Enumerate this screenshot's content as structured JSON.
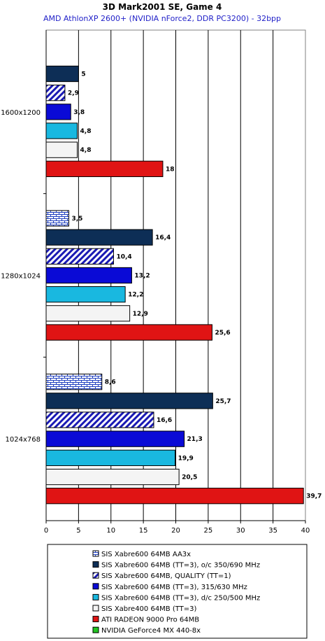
{
  "chart_data": {
    "type": "bar",
    "orientation": "horizontal",
    "title": "3D Mark2001 SE, Game 4",
    "subtitle": "AMD AthlonXP 2600+ (NVIDIA nForce2, DDR PC3200) - 32bpp",
    "categories": [
      "1600x1200",
      "1280x1024",
      "1024x768"
    ],
    "xlim": [
      0,
      40
    ],
    "xticks": [
      0,
      5,
      10,
      15,
      20,
      25,
      30,
      35,
      40
    ],
    "grid": "vertical",
    "legend_position": "bottom",
    "series": [
      {
        "name": "SIS Xabre600 64MB AA3x",
        "values": [
          null,
          3.5,
          8.6
        ],
        "labels": [
          "",
          "3,5",
          "8,6"
        ],
        "fill": "#ffffff",
        "color": "#1f3fbf",
        "pattern": "brick"
      },
      {
        "name": "SIS Xabre600 64MB (TT=3), o/c 350/690 MHz",
        "values": [
          5,
          16.4,
          25.7
        ],
        "labels": [
          "5",
          "16,4",
          "25,7"
        ],
        "fill": "#0d2e56",
        "pattern": "solid"
      },
      {
        "name": "SIS Xabre600 64MB, QUALITY (TT=1)",
        "values": [
          2.9,
          10.4,
          16.6
        ],
        "labels": [
          "2,9",
          "10,4",
          "16,6"
        ],
        "fill": "#ffffff",
        "color": "#1a1ab4",
        "pattern": "diagonal"
      },
      {
        "name": "SIS Xabre600 64MB (TT=3), 315/630 MHz",
        "values": [
          3.8,
          13.2,
          21.3
        ],
        "labels": [
          "3,8",
          "13,2",
          "21,3"
        ],
        "fill": "#0a0ad6",
        "pattern": "solid"
      },
      {
        "name": "SIS Xabre600 64MB (TT=3), d/c 250/500 MHz",
        "values": [
          4.8,
          12.2,
          19.9
        ],
        "labels": [
          "4,8",
          "12,2",
          "19,9"
        ],
        "fill": "#19b8e0",
        "pattern": "solid"
      },
      {
        "name": "SIS Xabre400 64MB (TT=3)",
        "values": [
          4.8,
          12.9,
          20.5
        ],
        "labels": [
          "4,8",
          "12,9",
          "20,5"
        ],
        "fill": "#f4f4f4",
        "pattern": "solid"
      },
      {
        "name": "ATI RADEON 9000 Pro 64MB",
        "values": [
          18,
          25.6,
          39.7
        ],
        "labels": [
          "18",
          "25,6",
          "39,7"
        ],
        "fill": "#e01414",
        "pattern": "solid"
      },
      {
        "name": "NVIDIA GeForce4 MX 440-8x",
        "values": [
          null,
          null,
          null
        ],
        "labels": [
          "",
          "",
          ""
        ],
        "fill": "#22c422",
        "pattern": "solid"
      }
    ]
  }
}
